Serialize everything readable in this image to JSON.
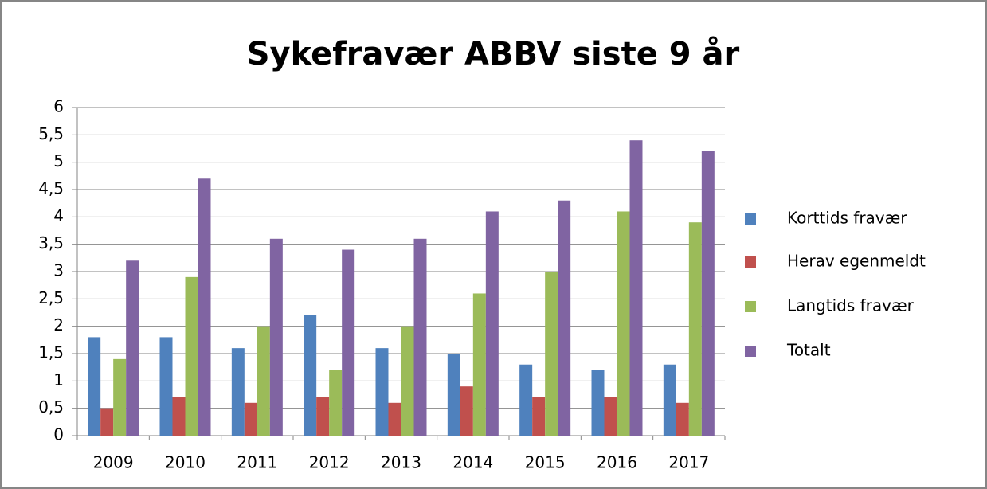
{
  "chart_data": {
    "type": "bar",
    "title": "Sykefravær ABBV siste 9 år",
    "categories": [
      "2009",
      "2010",
      "2011",
      "2012",
      "2013",
      "2014",
      "2015",
      "2016",
      "2017"
    ],
    "series": [
      {
        "name": "Korttids fravær",
        "color": "#4f81bd",
        "values": [
          1.8,
          1.8,
          1.6,
          2.2,
          1.6,
          1.5,
          1.3,
          1.2,
          1.3
        ]
      },
      {
        "name": "Herav egenmeldt",
        "color": "#c0504d",
        "values": [
          0.5,
          0.7,
          0.6,
          0.7,
          0.6,
          0.9,
          0.7,
          0.7,
          0.6
        ]
      },
      {
        "name": "Langtids fravær",
        "color": "#9bbb59",
        "values": [
          1.4,
          2.9,
          2.0,
          1.2,
          2.0,
          2.6,
          3.0,
          4.1,
          3.9
        ]
      },
      {
        "name": "Totalt",
        "color": "#8064a2",
        "values": [
          3.2,
          4.7,
          3.6,
          3.4,
          3.6,
          4.1,
          4.3,
          5.4,
          5.2
        ]
      }
    ],
    "ylim": [
      0,
      6
    ],
    "yticks": [
      0,
      {
        "value": 0.5,
        "label": "0,5"
      },
      1,
      {
        "value": 1.5,
        "label": "1,5"
      },
      2,
      {
        "value": 2.5,
        "label": "2,5"
      },
      3,
      {
        "value": 3.5,
        "label": "3,5"
      },
      4,
      {
        "value": 4.5,
        "label": "4,5"
      },
      5,
      {
        "value": 5.5,
        "label": "5,5"
      },
      6
    ],
    "grid": true,
    "legend": "right"
  }
}
